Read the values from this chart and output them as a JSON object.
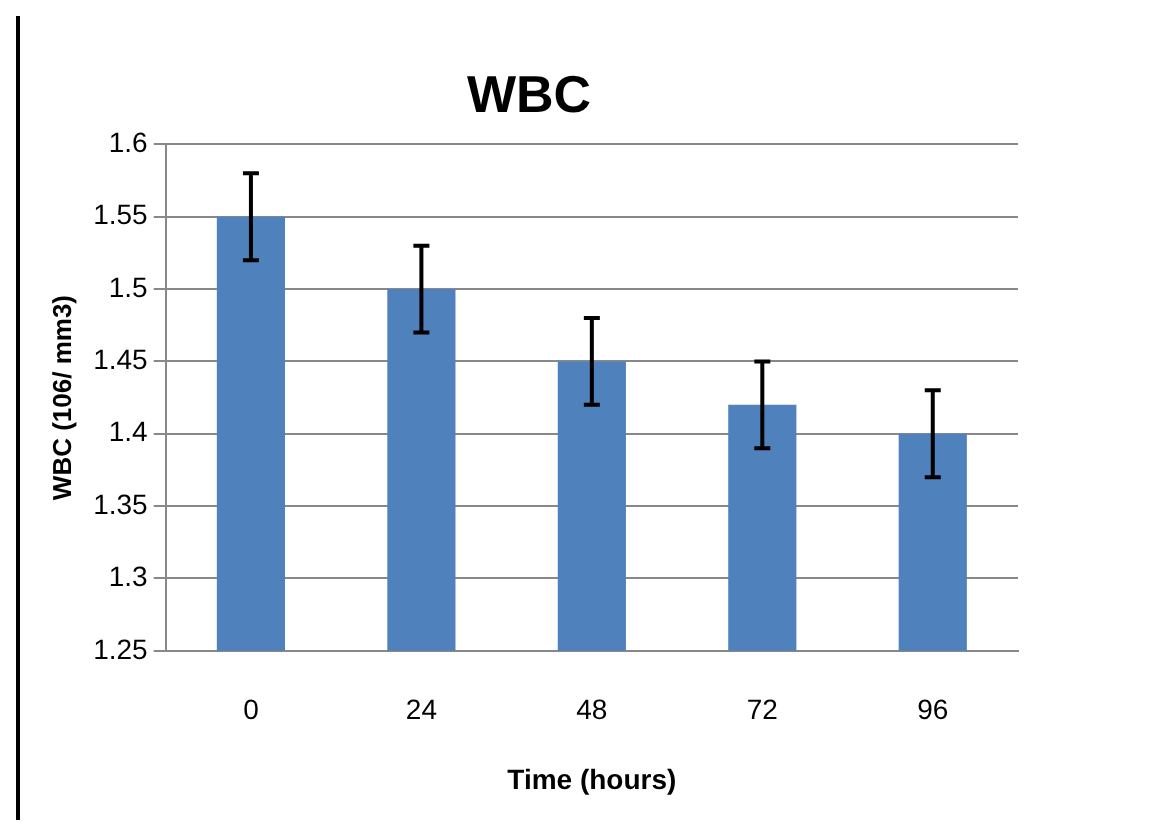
{
  "chart_data": {
    "type": "bar",
    "title": "WBC",
    "xlabel": "Time (hours)",
    "ylabel": "WBC (106/ mm3)",
    "categories": [
      "0",
      "24",
      "48",
      "72",
      "96"
    ],
    "values": [
      1.55,
      1.5,
      1.45,
      1.42,
      1.4
    ],
    "errors": [
      0.03,
      0.03,
      0.03,
      0.03,
      0.03
    ],
    "color": "#4f81bd",
    "ylim": [
      1.25,
      1.6
    ],
    "yticks": [
      1.25,
      1.3,
      1.35,
      1.4,
      1.45,
      1.5,
      1.55,
      1.6
    ],
    "grid": "y",
    "legend": false
  }
}
